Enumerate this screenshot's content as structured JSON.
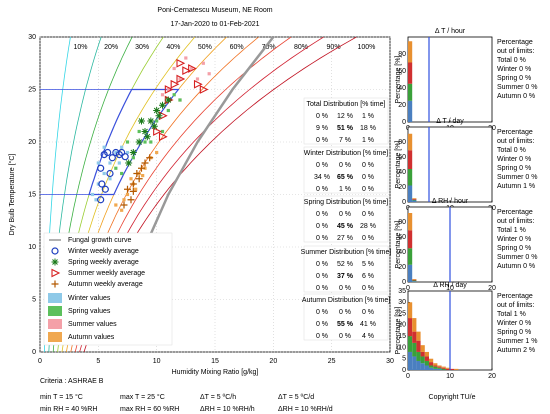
{
  "chart_data": [
    {
      "type": "scatter",
      "title": "Poni-Cernatescu Museum, NE Room",
      "subtitle": "17-Jan-2020 to 01-Feb-2021",
      "x_label": "Humidity Mixing Ratio [g/kg]",
      "y_label": "Dry Bulb Temperature [°C]",
      "xlim": [
        0,
        30
      ],
      "ylim": [
        0,
        30
      ],
      "xticks": [
        0,
        5,
        10,
        15,
        20,
        25,
        30
      ],
      "yticks": [
        0,
        5,
        10,
        15,
        20,
        25,
        30
      ],
      "grid": true,
      "rh_curves": [
        {
          "value": 10,
          "label": "10%",
          "color": "#33d6e6"
        },
        {
          "value": 20,
          "label": "20%",
          "color": "#2bb8a0"
        },
        {
          "value": 30,
          "label": "30%",
          "color": "#3cb043"
        },
        {
          "value": 40,
          "label": "40%",
          "color": "#9acd32"
        },
        {
          "value": 50,
          "label": "50%",
          "color": "#e0c020"
        },
        {
          "value": 60,
          "label": "60%",
          "color": "#f0a020"
        },
        {
          "value": 70,
          "label": "70%",
          "color": "#f07020"
        },
        {
          "value": 80,
          "label": "80%",
          "color": "#e84030"
        },
        {
          "value": 90,
          "label": "90%",
          "color": "#d02030"
        },
        {
          "value": 100,
          "label": "100%",
          "color": "#c01020"
        }
      ],
      "target_zone": {
        "tmin": 15,
        "tmax": 25,
        "rhmin": 40,
        "rhmax": 60,
        "color": "#3a4fe0"
      },
      "series": [
        {
          "name": "Fungal growth curve",
          "marker": "line",
          "color": "#999999",
          "x": [
            7.5,
            9,
            11,
            13.5,
            16.5,
            20
          ],
          "y": [
            5,
            10,
            15,
            20,
            25,
            30
          ]
        },
        {
          "name": "Winter weekly average",
          "marker": "circle",
          "color": "#1f3fbf",
          "x": [
            5.2,
            5.5,
            5.8,
            6.2,
            6.5,
            6.8,
            5.3,
            5.6,
            5.2,
            6,
            7,
            7.3
          ],
          "y": [
            17.5,
            18.8,
            19,
            18.5,
            19,
            18.8,
            16,
            15.5,
            14.5,
            17,
            19,
            18.6
          ]
        },
        {
          "name": "Spring weekly average",
          "marker": "asterisk",
          "color": "#1a7a1a",
          "x": [
            8,
            8.5,
            9,
            9.5,
            10,
            10.5,
            8.7,
            9.2,
            7.6,
            11,
            9.8,
            10.2
          ],
          "y": [
            19,
            20,
            21,
            22,
            23,
            23.5,
            22,
            20.5,
            18,
            24,
            21.5,
            22.5
          ]
        },
        {
          "name": "Summer weekly average",
          "marker": "triangle",
          "color": "#d62020",
          "x": [
            10,
            10.5,
            11,
            11.5,
            12,
            12.5,
            13,
            13.5,
            11,
            12,
            10.5,
            14
          ],
          "y": [
            21,
            22.5,
            24,
            25.5,
            26,
            26.8,
            27,
            25.5,
            25,
            27.5,
            20.5,
            25
          ]
        },
        {
          "name": "Autumn weekly average",
          "marker": "plus",
          "color": "#b35900",
          "x": [
            7.2,
            7.5,
            8,
            8.3,
            8.7,
            9,
            7.8,
            9.4,
            8.5,
            8
          ],
          "y": [
            14,
            15.5,
            16,
            17,
            17.5,
            18,
            14.5,
            18.5,
            16.5,
            15.3
          ]
        },
        {
          "name": "Winter values",
          "marker": "square",
          "color": "#8ec9e8",
          "x": [
            4.5,
            5,
            5.5,
            6,
            6.5,
            7,
            5,
            4.8,
            6,
            7.5,
            5.5,
            6.8
          ],
          "y": [
            15,
            16,
            17,
            18,
            19,
            19.5,
            18,
            14.5,
            16.5,
            19,
            19.5,
            18
          ]
        },
        {
          "name": "Spring values",
          "marker": "square",
          "color": "#5cc05c",
          "x": [
            7,
            8,
            9,
            10,
            11,
            8.5,
            9.5,
            12,
            7.5,
            10.5,
            6.5,
            11.5
          ],
          "y": [
            17,
            18.5,
            20,
            22,
            23,
            21,
            20,
            24,
            20,
            21,
            17.5,
            24.5
          ]
        },
        {
          "name": "Summer values",
          "marker": "square",
          "color": "#f4a0a8",
          "x": [
            10,
            11,
            12,
            13,
            14,
            12.5,
            11.5,
            13.5,
            10.5,
            9.5,
            14.5,
            12
          ],
          "y": [
            23,
            25,
            26,
            27,
            27.5,
            28,
            27,
            26,
            24.5,
            22,
            26.5,
            24
          ]
        },
        {
          "name": "Autumn values",
          "marker": "square",
          "color": "#f0a850",
          "x": [
            7,
            7.5,
            8,
            8.5,
            9,
            9.5,
            7.2,
            8.2,
            6.5,
            10,
            8.8,
            7.8
          ],
          "y": [
            13.5,
            15,
            16,
            17,
            17.5,
            18.5,
            14.5,
            15.5,
            14,
            19,
            16.8,
            16.5
          ]
        }
      ]
    },
    {
      "type": "histogram",
      "title": "Δ T / hour",
      "y_label": "Percentage [%]",
      "bins": [
        0,
        1,
        2,
        3,
        4,
        5
      ],
      "series": [
        {
          "color": "#4a7fc0",
          "values": [
            25,
            0,
            0,
            0,
            0
          ]
        },
        {
          "color": "#3aa03a",
          "values": [
            20,
            0,
            0,
            0,
            0
          ]
        },
        {
          "color": "#d03030",
          "values": [
            25,
            0,
            0,
            0,
            0
          ]
        },
        {
          "color": "#e89030",
          "values": [
            25,
            0,
            0,
            0,
            0
          ]
        }
      ],
      "xlim": [
        0,
        20
      ],
      "ylim": [
        0,
        100
      ],
      "xticks": [
        0,
        10,
        20
      ],
      "yticks": [
        0,
        20,
        40,
        60,
        80
      ],
      "limit": 5,
      "limit_color": "#3050e0",
      "out_of_limits_title": [
        "Percentage",
        "out of limits:"
      ],
      "out_of_limits": [
        {
          "text": "Total 0 %",
          "color": "#000000"
        },
        {
          "text": "Winter 0 %",
          "color": "#1f3fbf"
        },
        {
          "text": "Spring 0 %",
          "color": "#1a7a1a"
        },
        {
          "text": "Summer 0 %",
          "color": "#d62020"
        },
        {
          "text": "Autumn 0 %",
          "color": "#b35900"
        }
      ]
    },
    {
      "type": "histogram",
      "title": "Δ T / day",
      "y_label": "Percentage [%]",
      "bins": [
        0,
        1,
        2,
        3,
        4,
        5
      ],
      "series": [
        {
          "color": "#4a7fc0",
          "values": [
            22,
            2,
            0,
            0,
            0
          ]
        },
        {
          "color": "#3aa03a",
          "values": [
            22,
            1,
            0,
            0,
            0
          ]
        },
        {
          "color": "#d03030",
          "values": [
            25,
            1,
            0,
            0,
            0
          ]
        },
        {
          "color": "#e89030",
          "values": [
            22,
            1,
            0,
            0,
            0
          ]
        }
      ],
      "xlim": [
        0,
        20
      ],
      "ylim": [
        0,
        100
      ],
      "xticks": [
        0,
        10,
        20
      ],
      "yticks": [
        0,
        20,
        40,
        60,
        80
      ],
      "limit": 5,
      "limit_color": "#3050e0",
      "out_of_limits_title": [
        "Percentage",
        "out of limits:"
      ],
      "out_of_limits": [
        {
          "text": "Total 0 %",
          "color": "#000000"
        },
        {
          "text": "Winter 0 %",
          "color": "#1f3fbf"
        },
        {
          "text": "Spring 0 %",
          "color": "#1a7a1a"
        },
        {
          "text": "Summer 0 %",
          "color": "#d62020"
        },
        {
          "text": "Autumn 1 %",
          "color": "#b35900"
        }
      ]
    },
    {
      "type": "histogram",
      "title": "Δ RH / hour",
      "y_label": "Percentage [%]",
      "bins": [
        0,
        1,
        2,
        3
      ],
      "series": [
        {
          "color": "#4a7fc0",
          "values": [
            23,
            1,
            0
          ]
        },
        {
          "color": "#3aa03a",
          "values": [
            22,
            1,
            0
          ]
        },
        {
          "color": "#d03030",
          "values": [
            24,
            1,
            0
          ]
        },
        {
          "color": "#e89030",
          "values": [
            23,
            1,
            0
          ]
        }
      ],
      "xlim": [
        0,
        20
      ],
      "ylim": [
        0,
        100
      ],
      "xticks": [
        0,
        10,
        20
      ],
      "yticks": [
        0,
        20,
        40,
        60,
        80
      ],
      "limit": 10,
      "limit_color": "#3050e0",
      "out_of_limits_title": [
        "Percentage",
        "out of limits:"
      ],
      "out_of_limits": [
        {
          "text": "Total 1 %",
          "color": "#000000"
        },
        {
          "text": "Winter 0 %",
          "color": "#1f3fbf"
        },
        {
          "text": "Spring 0 %",
          "color": "#1a7a1a"
        },
        {
          "text": "Summer 0 %",
          "color": "#d62020"
        },
        {
          "text": "Autumn 0 %",
          "color": "#b35900"
        }
      ]
    },
    {
      "type": "histogram",
      "title": "Δ RH / day",
      "y_label": "Percentage [%]",
      "bins": [
        0,
        1,
        2,
        3,
        4,
        5,
        6,
        7,
        8,
        9,
        10,
        11,
        12
      ],
      "series": [
        {
          "color": "#4a7fc0",
          "values": [
            8,
            6,
            4,
            3,
            2,
            1,
            0.5,
            0.5,
            0,
            0,
            0,
            0
          ]
        },
        {
          "color": "#3aa03a",
          "values": [
            7,
            6,
            4,
            3,
            2,
            1,
            1,
            0.5,
            0.5,
            0,
            0,
            0
          ]
        },
        {
          "color": "#d03030",
          "values": [
            8,
            5,
            5,
            2,
            2,
            1.5,
            0.5,
            0.5,
            0.5,
            0.5,
            0.5,
            0
          ]
        },
        {
          "color": "#e89030",
          "values": [
            7,
            6,
            4,
            3,
            2,
            1.5,
            1,
            0.5,
            0.5,
            0.5,
            0,
            0.5
          ]
        }
      ],
      "xlim": [
        0,
        20
      ],
      "ylim": [
        0,
        35
      ],
      "xticks": [
        0,
        10,
        20
      ],
      "yticks": [
        0,
        5,
        10,
        15,
        20,
        25,
        30,
        35
      ],
      "limit": 10,
      "limit_color": "#3050e0",
      "out_of_limits_title": [
        "Percentage",
        "out of limits:"
      ],
      "out_of_limits": [
        {
          "text": "Total 1 %",
          "color": "#000000"
        },
        {
          "text": "Winter 0 %",
          "color": "#1f3fbf"
        },
        {
          "text": "Spring 0 %",
          "color": "#1a7a1a"
        },
        {
          "text": "Summer 1 %",
          "color": "#d62020"
        },
        {
          "text": "Autumn 2 %",
          "color": "#b35900"
        }
      ]
    }
  ],
  "distribution_tables": [
    {
      "title": "Total Distribution [% time]",
      "color": "#000000",
      "rows": [
        [
          "0 %",
          "12 %",
          "1 %"
        ],
        [
          "9 %",
          "51 %",
          "18 %"
        ],
        [
          "0 %",
          "7 %",
          "1 %"
        ]
      ]
    },
    {
      "title": "Winter Distribution [% time]",
      "color": "#1f3fbf",
      "rows": [
        [
          "0 %",
          "0 %",
          "0 %"
        ],
        [
          "34 %",
          "65 %",
          "0 %"
        ],
        [
          "0 %",
          "1 %",
          "0 %"
        ]
      ]
    },
    {
      "title": "Spring Distribution [% time]",
      "color": "#1a7a1a",
      "rows": [
        [
          "0 %",
          "0 %",
          "0 %"
        ],
        [
          "0 %",
          "45 %",
          "28 %"
        ],
        [
          "0 %",
          "27 %",
          "0 %"
        ]
      ]
    },
    {
      "title": "Summer Distribution [% time]",
      "color": "#d62020",
      "rows": [
        [
          "0 %",
          "52 %",
          "5 %"
        ],
        [
          "0 %",
          "37 %",
          "6 %"
        ],
        [
          "0 %",
          "0 %",
          "0 %"
        ]
      ]
    },
    {
      "title": "Autumn Distribution [% time]",
      "color": "#b35900",
      "rows": [
        [
          "0 %",
          "0 %",
          "0 %"
        ],
        [
          "0 %",
          "55 %",
          "41 %"
        ],
        [
          "0 %",
          "0 %",
          "4 %"
        ]
      ]
    }
  ],
  "criteria": {
    "title": "Criteria : ASHRAE B",
    "rows": [
      [
        "min T = 15 °C",
        "max T = 25 °C",
        "ΔT = 5 ºC/h",
        "ΔT = 5 ºC/d"
      ],
      [
        "min RH = 40 %RH",
        "max RH = 60 %RH",
        "ΔRH = 10 %RH/h",
        "ΔRH = 10 %RH/d"
      ]
    ]
  },
  "copyright": "Copyright TU/e"
}
